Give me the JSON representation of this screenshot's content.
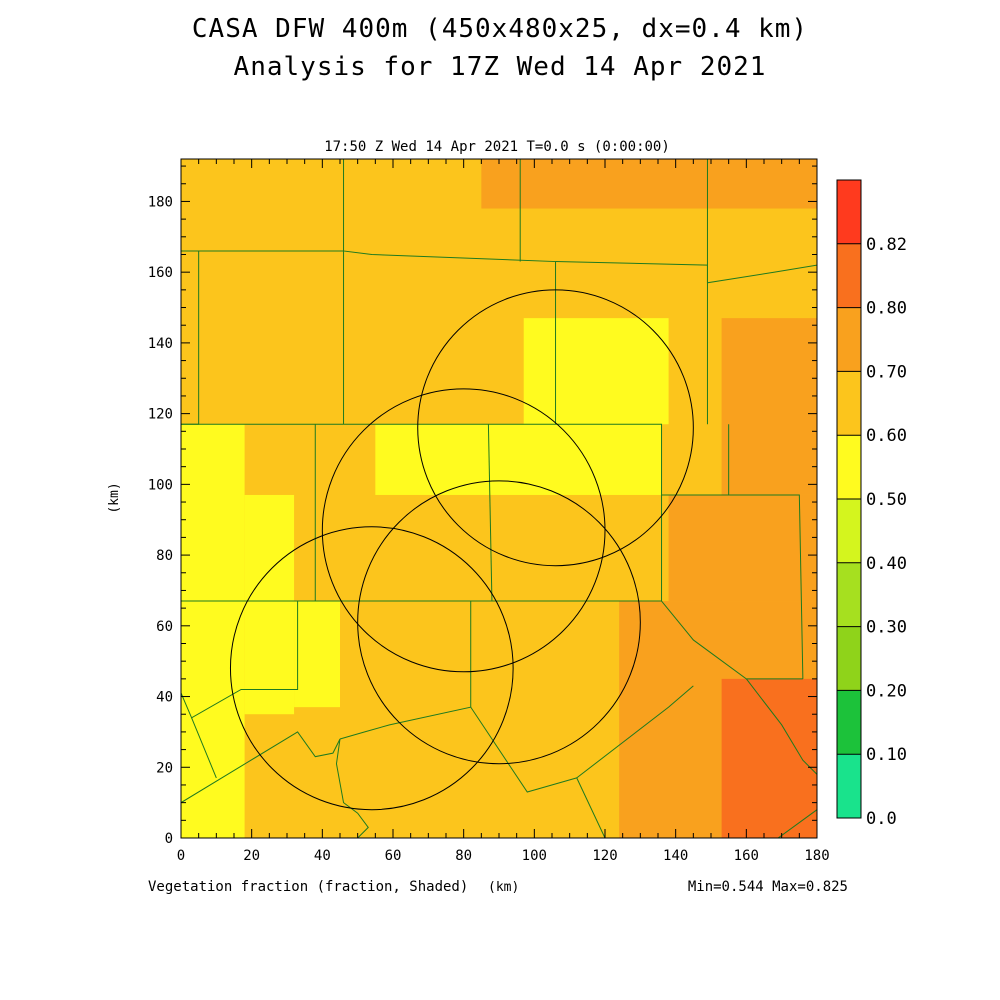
{
  "chart_data": {
    "type": "heatmap",
    "title": "CASA DFW 400m (450x480x25, dx=0.4 km)",
    "subtitle": "Analysis for 17Z Wed 14 Apr 2021",
    "plot_header": "17:50 Z Wed 14 Apr 2021   T=0.0 s (0:00:00)",
    "xlabel": "(km)",
    "ylabel": "(km)",
    "field_label": "Vegetation fraction (fraction, Shaded)",
    "min_max": "Min=0.544 Max=0.825",
    "xlim": [
      0,
      180
    ],
    "ylim": [
      0,
      192
    ],
    "x_ticks": [
      "0",
      "20",
      "40",
      "60",
      "80",
      "100",
      "120",
      "140",
      "160",
      "180"
    ],
    "y_ticks": [
      "0",
      "20",
      "40",
      "60",
      "80",
      "100",
      "120",
      "140",
      "160",
      "180"
    ],
    "colorbar": {
      "levels": [
        "0.0",
        "0.10",
        "0.20",
        "0.30",
        "0.40",
        "0.50",
        "0.60",
        "0.70",
        "0.80",
        "0.82"
      ],
      "colors": [
        "#19e38c",
        "#1cc23a",
        "#8fd31a",
        "#a6e01f",
        "#d4f51e",
        "#fffb1f",
        "#fcc51c",
        "#f9a11e",
        "#f9701e",
        "#ff3a1e"
      ]
    },
    "radar_range_rings": [
      {
        "center_km": [
          106,
          116
        ],
        "radius_km": 39
      },
      {
        "center_km": [
          80,
          87
        ],
        "radius_km": 40
      },
      {
        "center_km": [
          90,
          61
        ],
        "radius_km": 40
      },
      {
        "center_km": [
          54,
          48
        ],
        "radius_km": 40
      }
    ],
    "shaded_regions": [
      {
        "x": [
          0,
          180
        ],
        "y": [
          0,
          192
        ],
        "value": 0.65
      },
      {
        "x": [
          85,
          180
        ],
        "y": [
          178,
          192
        ],
        "value": 0.75
      },
      {
        "x": [
          0,
          18
        ],
        "y": [
          0,
          117
        ],
        "value": 0.55
      },
      {
        "x": [
          18,
          32
        ],
        "y": [
          35,
          97
        ],
        "value": 0.55
      },
      {
        "x": [
          32,
          45
        ],
        "y": [
          37,
          67
        ],
        "value": 0.55
      },
      {
        "x": [
          55,
          136
        ],
        "y": [
          97,
          117
        ],
        "value": 0.55
      },
      {
        "x": [
          97,
          138
        ],
        "y": [
          117,
          147
        ],
        "value": 0.55
      },
      {
        "x": [
          138,
          180
        ],
        "y": [
          67,
          97
        ],
        "value": 0.75
      },
      {
        "x": [
          124,
          180
        ],
        "y": [
          0,
          67
        ],
        "value": 0.75
      },
      {
        "x": [
          153,
          180
        ],
        "y": [
          97,
          147
        ],
        "value": 0.75
      },
      {
        "x": [
          153,
          180
        ],
        "y": [
          0,
          45
        ],
        "value": 0.82
      }
    ],
    "county_boundaries": [
      [
        [
          0,
          166
        ],
        [
          5,
          166
        ],
        [
          5,
          117
        ],
        [
          0,
          117
        ]
      ],
      [
        [
          5,
          166
        ],
        [
          46,
          166
        ],
        [
          46,
          117
        ]
      ],
      [
        [
          46,
          192
        ],
        [
          46,
          166
        ],
        [
          54,
          165
        ],
        [
          106,
          163
        ],
        [
          106,
          117
        ]
      ],
      [
        [
          96,
          192
        ],
        [
          96,
          163
        ]
      ],
      [
        [
          106,
          163
        ],
        [
          149,
          162
        ],
        [
          149,
          117
        ]
      ],
      [
        [
          149,
          192
        ],
        [
          149,
          157
        ],
        [
          168,
          160
        ],
        [
          180,
          162
        ]
      ],
      [
        [
          0,
          117
        ],
        [
          136,
          117
        ],
        [
          136,
          97
        ],
        [
          155,
          97
        ],
        [
          155,
          117
        ]
      ],
      [
        [
          38,
          117
        ],
        [
          38,
          67
        ],
        [
          0,
          67
        ]
      ],
      [
        [
          87,
          117
        ],
        [
          88,
          67
        ]
      ],
      [
        [
          136,
          97
        ],
        [
          136,
          67
        ],
        [
          38,
          67
        ]
      ],
      [
        [
          33,
          67
        ],
        [
          33,
          42
        ],
        [
          17,
          42
        ],
        [
          3,
          34
        ],
        [
          0,
          41
        ]
      ],
      [
        [
          3,
          34
        ],
        [
          10,
          17
        ]
      ],
      [
        [
          0,
          10
        ],
        [
          33,
          30
        ],
        [
          38,
          23
        ],
        [
          43,
          24
        ],
        [
          45,
          28
        ]
      ],
      [
        [
          45,
          28
        ],
        [
          52,
          30
        ],
        [
          59,
          32
        ],
        [
          82,
          37
        ],
        [
          98,
          13
        ],
        [
          112,
          17
        ],
        [
          120,
          0
        ]
      ],
      [
        [
          82,
          37
        ],
        [
          82,
          67
        ]
      ],
      [
        [
          45,
          28
        ],
        [
          44,
          21
        ],
        [
          46,
          10
        ],
        [
          50,
          7
        ],
        [
          53,
          3
        ],
        [
          50,
          0
        ]
      ],
      [
        [
          136,
          67
        ],
        [
          145,
          56
        ],
        [
          160,
          45
        ],
        [
          176,
          45
        ]
      ],
      [
        [
          155,
          97
        ],
        [
          175,
          97
        ],
        [
          176,
          45
        ]
      ],
      [
        [
          160,
          45
        ],
        [
          170,
          32
        ],
        [
          176,
          22
        ],
        [
          180,
          18
        ]
      ],
      [
        [
          169,
          0
        ],
        [
          180,
          8
        ]
      ],
      [
        [
          112,
          17
        ],
        [
          138,
          37
        ],
        [
          145,
          43
        ]
      ]
    ]
  }
}
